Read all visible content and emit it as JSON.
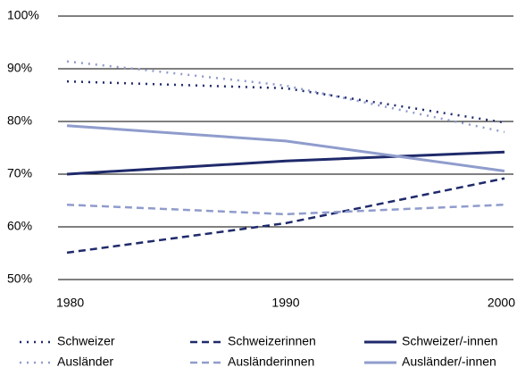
{
  "chart_data": {
    "type": "line",
    "x": [
      1980,
      1990,
      2000
    ],
    "xlim": [
      1980,
      2000
    ],
    "ylim": [
      50,
      100
    ],
    "yticks": [
      {
        "value": 50,
        "label": "50%"
      },
      {
        "value": 60,
        "label": "60%"
      },
      {
        "value": 70,
        "label": "70%"
      },
      {
        "value": 80,
        "label": "80%"
      },
      {
        "value": 90,
        "label": "90%"
      },
      {
        "value": 100,
        "label": "100%"
      }
    ],
    "grid": true,
    "legend": "bottom",
    "series": [
      {
        "name": "Schweizer",
        "color": "#1f2a6b",
        "dash": "dotted",
        "values": [
          87.6,
          86.3,
          79.8
        ]
      },
      {
        "name": "Schweizerinnen",
        "color": "#1f2a6b",
        "dash": "dashed",
        "values": [
          55.1,
          60.7,
          69.2
        ]
      },
      {
        "name": "Schweizer/-innen",
        "color": "#1f2a6b",
        "dash": "solid",
        "values": [
          70.0,
          72.5,
          74.2
        ]
      },
      {
        "name": "Ausländer",
        "color": "#8f9ccc",
        "dash": "dotted",
        "values": [
          91.4,
          86.8,
          78.0
        ]
      },
      {
        "name": "Ausländerinnen",
        "color": "#8f9ccc",
        "dash": "dashed",
        "values": [
          64.2,
          62.4,
          64.2
        ]
      },
      {
        "name": "Ausländer/-innen",
        "color": "#8f9ccc",
        "dash": "solid",
        "values": [
          79.2,
          76.3,
          70.6
        ]
      }
    ]
  }
}
